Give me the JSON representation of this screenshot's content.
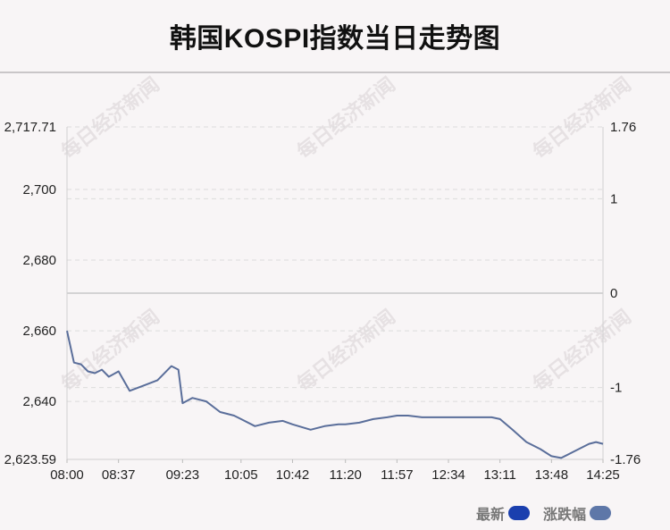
{
  "title": "韩国KOSPI指数当日走势图",
  "watermark": "每日经济新闻",
  "colors": {
    "line": "#5a6e9a",
    "latest_swatch": "#1a3fae",
    "change_swatch": "#5e77a8",
    "grid": "#dcdcdc",
    "zero_line": "#c8c8c8"
  },
  "legend": [
    {
      "label": "最新",
      "color": "#1a3fae"
    },
    {
      "label": "涨跌幅",
      "color": "#5e77a8"
    }
  ],
  "chart_data": {
    "type": "line",
    "title": "韩国KOSPI指数当日走势图",
    "xlabel": "",
    "ylabel": "",
    "x_ticks": [
      "08:00",
      "08:37",
      "09:23",
      "10:05",
      "10:42",
      "11:20",
      "11:57",
      "12:34",
      "13:11",
      "13:48",
      "14:25"
    ],
    "y_ticks_left": [
      "2,717.71",
      "2,700",
      "2,680",
      "2,660",
      "2,640",
      "2,623.59"
    ],
    "y_ticks_right": [
      "1.76",
      "1",
      "0",
      "-1",
      "-1.76"
    ],
    "ylim_left": [
      2623.59,
      2717.71
    ],
    "ylim_right": [
      -1.76,
      1.76
    ],
    "grid": true,
    "legend_position": "bottom-right",
    "series": [
      {
        "name": "最新",
        "x": [
          "08:00",
          "08:05",
          "08:10",
          "08:15",
          "08:20",
          "08:25",
          "08:30",
          "08:37",
          "08:45",
          "08:55",
          "09:05",
          "09:15",
          "09:20",
          "09:23",
          "09:30",
          "09:40",
          "09:50",
          "10:00",
          "10:05",
          "10:15",
          "10:25",
          "10:35",
          "10:42",
          "10:55",
          "11:05",
          "11:15",
          "11:20",
          "11:30",
          "11:40",
          "11:50",
          "11:57",
          "12:05",
          "12:15",
          "12:25",
          "12:34",
          "12:45",
          "12:55",
          "13:05",
          "13:11",
          "13:20",
          "13:30",
          "13:40",
          "13:48",
          "13:55",
          "14:05",
          "14:15",
          "14:20",
          "14:25"
        ],
        "y": [
          2660.0,
          2651.0,
          2650.5,
          2648.5,
          2648.0,
          2649.0,
          2647.0,
          2648.5,
          2643.0,
          2644.5,
          2646.0,
          2650.0,
          2649.0,
          2639.5,
          2641.0,
          2640.0,
          2637.0,
          2636.0,
          2635.0,
          2633.0,
          2634.0,
          2634.5,
          2633.5,
          2632.0,
          2633.0,
          2633.5,
          2633.5,
          2634.0,
          2635.0,
          2635.5,
          2636.0,
          2636.0,
          2635.5,
          2635.5,
          2635.5,
          2635.5,
          2635.5,
          2635.5,
          2635.0,
          2632.0,
          2628.5,
          2626.5,
          2624.5,
          2624.0,
          2626.0,
          2628.0,
          2628.5,
          2628.0
        ]
      }
    ]
  }
}
